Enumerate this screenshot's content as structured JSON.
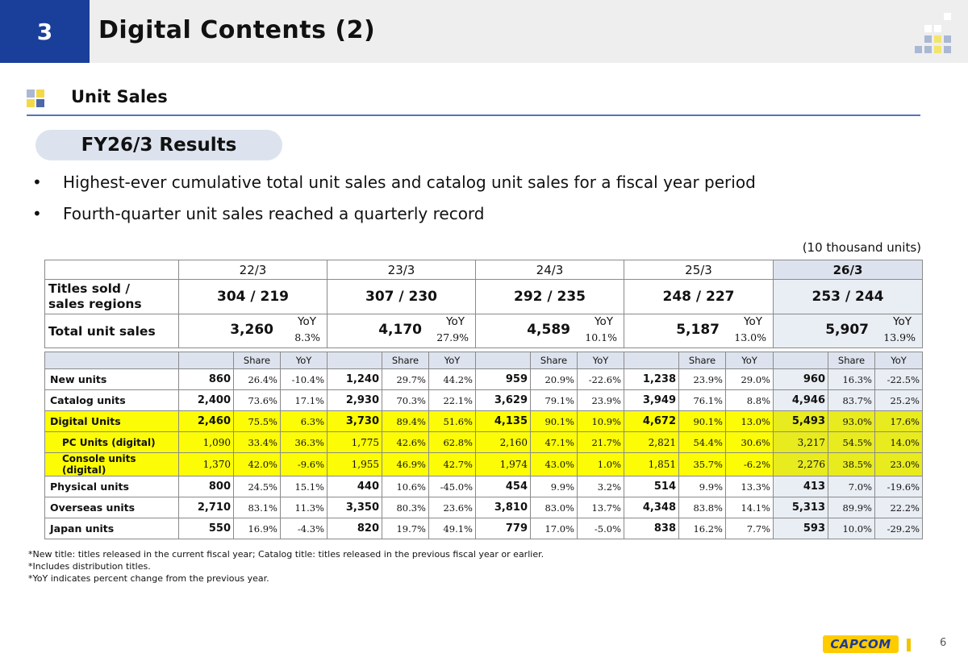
{
  "header": {
    "section_number": "3",
    "title": "Digital Contents (2)"
  },
  "section": {
    "subtitle": "Unit Sales"
  },
  "results": {
    "pill_label": "FY26/3 Results",
    "bullets": [
      "Highest-ever cumulative total unit sales and catalog unit sales for a fiscal year period",
      "Fourth-quarter unit sales reached a quarterly record"
    ],
    "bullet_symbol": "•"
  },
  "unit_note": "(10 thousand units)",
  "summary": {
    "years": [
      "22/3",
      "23/3",
      "24/3",
      "25/3",
      "26/3"
    ],
    "titles_label": "Titles sold /\nsales regions",
    "titles": [
      "304 / 219",
      "307 / 230",
      "292 / 235",
      "248 / 227",
      "253 / 244"
    ],
    "total_label": "Total unit sales",
    "yoy_label": "YoY",
    "totals": [
      {
        "value": "3,260",
        "yoy": "8.3%"
      },
      {
        "value": "4,170",
        "yoy": "27.9%"
      },
      {
        "value": "4,589",
        "yoy": "10.1%"
      },
      {
        "value": "5,187",
        "yoy": "13.0%"
      },
      {
        "value": "5,907",
        "yoy": "13.9%"
      }
    ]
  },
  "detail": {
    "share_label": "Share",
    "yoy_label": "YoY",
    "rows": [
      {
        "label": "New units",
        "values": [
          [
            "860",
            "26.4%",
            "-10.4%"
          ],
          [
            "1,240",
            "29.7%",
            "44.2%"
          ],
          [
            "959",
            "20.9%",
            "-22.6%"
          ],
          [
            "1,238",
            "23.9%",
            "29.0%"
          ],
          [
            "960",
            "16.3%",
            "-22.5%"
          ]
        ]
      },
      {
        "label": "Catalog units",
        "values": [
          [
            "2,400",
            "73.6%",
            "17.1%"
          ],
          [
            "2,930",
            "70.3%",
            "22.1%"
          ],
          [
            "3,629",
            "79.1%",
            "23.9%"
          ],
          [
            "3,949",
            "76.1%",
            "8.8%"
          ],
          [
            "4,946",
            "83.7%",
            "25.2%"
          ]
        ]
      },
      {
        "label": "Digital Units",
        "values": [
          [
            "2,460",
            "75.5%",
            "6.3%"
          ],
          [
            "3,730",
            "89.4%",
            "51.6%"
          ],
          [
            "4,135",
            "90.1%",
            "10.9%"
          ],
          [
            "4,672",
            "90.1%",
            "13.0%"
          ],
          [
            "5,493",
            "93.0%",
            "17.6%"
          ]
        ]
      },
      {
        "label": "PC Units (digital)",
        "values": [
          [
            "1,090",
            "33.4%",
            "36.3%"
          ],
          [
            "1,775",
            "42.6%",
            "62.8%"
          ],
          [
            "2,160",
            "47.1%",
            "21.7%"
          ],
          [
            "2,821",
            "54.4%",
            "30.6%"
          ],
          [
            "3,217",
            "54.5%",
            "14.0%"
          ]
        ]
      },
      {
        "label": "Console units (digital)",
        "values": [
          [
            "1,370",
            "42.0%",
            "-9.6%"
          ],
          [
            "1,955",
            "46.9%",
            "42.7%"
          ],
          [
            "1,974",
            "43.0%",
            "1.0%"
          ],
          [
            "1,851",
            "35.7%",
            "-6.2%"
          ],
          [
            "2,276",
            "38.5%",
            "23.0%"
          ]
        ]
      },
      {
        "label": "Physical units",
        "values": [
          [
            "800",
            "24.5%",
            "15.1%"
          ],
          [
            "440",
            "10.6%",
            "-45.0%"
          ],
          [
            "454",
            "9.9%",
            "3.2%"
          ],
          [
            "514",
            "9.9%",
            "13.3%"
          ],
          [
            "413",
            "7.0%",
            "-19.6%"
          ]
        ]
      },
      {
        "label": "Overseas units",
        "values": [
          [
            "2,710",
            "83.1%",
            "11.3%"
          ],
          [
            "3,350",
            "80.3%",
            "23.6%"
          ],
          [
            "3,810",
            "83.0%",
            "13.7%"
          ],
          [
            "4,348",
            "83.8%",
            "14.1%"
          ],
          [
            "5,313",
            "89.9%",
            "22.2%"
          ]
        ]
      },
      {
        "label": "Japan units",
        "values": [
          [
            "550",
            "16.9%",
            "-4.3%"
          ],
          [
            "820",
            "19.7%",
            "49.1%"
          ],
          [
            "779",
            "17.0%",
            "-5.0%"
          ],
          [
            "838",
            "16.2%",
            "7.7%"
          ],
          [
            "593",
            "10.0%",
            "-29.2%"
          ]
        ]
      }
    ]
  },
  "footnotes": [
    "*New title: titles released in the current fiscal year; Catalog title: titles released in the previous fiscal year or earlier.",
    "*Includes distribution titles.",
    "*YoY indicates percent change from the previous year."
  ],
  "footer": {
    "logo_text": "CAPCOM",
    "page_number": "6"
  },
  "colors": {
    "header_blue": "#1a3f9a",
    "highlight_yellow": "#fcfc06",
    "column_highlight": "#e9edf4",
    "logo_yellow": "#ffcc00"
  }
}
